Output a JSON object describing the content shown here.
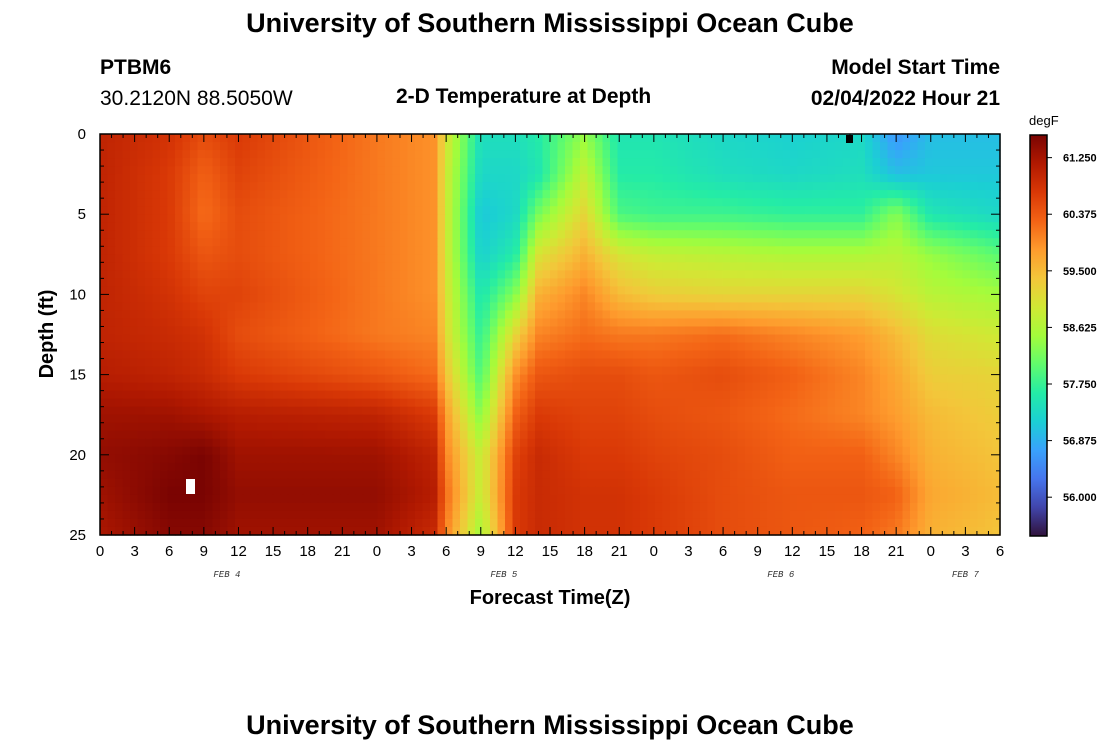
{
  "header": {
    "title_top": "University of Southern Mississippi Ocean Cube",
    "station": "PTBM6",
    "coords": "30.2120N  88.5050W",
    "chart_title": "2-D Temperature at Depth",
    "model_start_label": "Model Start Time",
    "model_start_value": "02/04/2022 Hour 21",
    "title_bottom": "University of Southern Mississippi Ocean Cube"
  },
  "chart_data": {
    "type": "heatmap",
    "title": "2-D Temperature at Depth",
    "xlabel": "Forecast Time(Z)",
    "ylabel": "Depth (ft)",
    "units": "degF",
    "x_hours": [
      0,
      78
    ],
    "y_depth_ft": [
      0,
      25
    ],
    "x_tick_labels": [
      "0",
      "3",
      "6",
      "9",
      "12",
      "15",
      "18",
      "21",
      "0",
      "3",
      "6",
      "9",
      "12",
      "15",
      "18",
      "21",
      "0",
      "3",
      "6",
      "9",
      "12",
      "15",
      "18",
      "21",
      "0",
      "3",
      "6"
    ],
    "y_tick_labels": [
      "0",
      "5",
      "10",
      "15",
      "20",
      "25"
    ],
    "day_labels": [
      {
        "label": "FEB 4",
        "hour": 11
      },
      {
        "label": "FEB 5",
        "hour": 35
      },
      {
        "label": "FEB 6",
        "hour": 59
      },
      {
        "label": "FEB 7",
        "hour": 75
      }
    ],
    "colorbar": {
      "min": 55.4,
      "max": 61.6,
      "tick_values": [
        61.25,
        60.375,
        59.5,
        58.625,
        57.75,
        56.875,
        56.0
      ],
      "tick_labels": [
        "61.250",
        "60.375",
        "59.500",
        "58.625",
        "57.750",
        "56.875",
        "56.000"
      ],
      "colors": [
        "#30123b",
        "#4145ab",
        "#4675ed",
        "#39a2fc",
        "#1bcfd4",
        "#24eca6",
        "#61fc6c",
        "#a4fc3b",
        "#d1e834",
        "#f3c63a",
        "#fe9b2d",
        "#f36315",
        "#d93806",
        "#b11901",
        "#7a0402"
      ]
    },
    "depth_rows_ft": [
      0,
      2.5,
      5,
      7.5,
      10,
      12.5,
      15,
      17.5,
      20,
      22.5,
      25
    ],
    "time_cols_hours": [
      0,
      6,
      9,
      12,
      24,
      29,
      30,
      33,
      36,
      38,
      42,
      45,
      48,
      54,
      60,
      66,
      69,
      72,
      78
    ],
    "temperature_grid": [
      [
        61.0,
        60.8,
        60.5,
        60.7,
        60.1,
        59.9,
        59.0,
        57.4,
        57.4,
        57.6,
        58.4,
        57.5,
        57.5,
        57.3,
        57.2,
        57.3,
        56.6,
        57.0,
        57.0
      ],
      [
        61.0,
        60.7,
        60.3,
        60.6,
        60.1,
        59.9,
        58.9,
        57.3,
        57.3,
        57.5,
        58.8,
        57.6,
        57.6,
        57.4,
        57.3,
        57.4,
        57.0,
        57.1,
        57.1
      ],
      [
        61.0,
        60.7,
        60.2,
        60.5,
        60.1,
        59.9,
        58.9,
        57.1,
        57.3,
        58.2,
        59.2,
        57.9,
        57.8,
        57.8,
        57.7,
        57.7,
        58.3,
        57.5,
        57.3
      ],
      [
        61.0,
        60.7,
        60.4,
        60.5,
        60.1,
        59.9,
        58.9,
        57.2,
        57.6,
        59.0,
        59.6,
        59.0,
        58.8,
        58.7,
        58.6,
        58.6,
        58.7,
        58.4,
        58.0
      ],
      [
        61.0,
        60.8,
        60.6,
        60.6,
        60.1,
        59.9,
        59.0,
        57.5,
        58.3,
        59.6,
        60.0,
        59.5,
        59.3,
        59.2,
        59.2,
        59.2,
        59.0,
        58.7,
        58.5
      ],
      [
        61.0,
        60.9,
        60.8,
        60.5,
        60.1,
        60.0,
        59.1,
        57.7,
        59.2,
        60.0,
        60.2,
        60.1,
        60.1,
        60.2,
        60.0,
        59.8,
        59.5,
        59.1,
        58.9
      ],
      [
        61.1,
        61.0,
        60.9,
        60.7,
        60.4,
        60.2,
        59.4,
        57.9,
        59.9,
        60.4,
        60.5,
        60.5,
        60.4,
        60.5,
        60.3,
        60.0,
        59.7,
        59.3,
        59.2
      ],
      [
        61.3,
        61.3,
        61.2,
        61.1,
        61.0,
        60.7,
        59.8,
        58.3,
        60.3,
        60.7,
        60.6,
        60.6,
        60.5,
        60.4,
        60.2,
        60.0,
        59.8,
        59.5,
        59.3
      ],
      [
        61.4,
        61.5,
        61.6,
        61.3,
        61.3,
        61.0,
        60.0,
        58.8,
        60.6,
        60.9,
        60.7,
        60.7,
        60.6,
        60.5,
        60.3,
        60.3,
        60.0,
        59.6,
        59.4
      ],
      [
        61.3,
        61.6,
        61.6,
        61.4,
        61.4,
        61.1,
        60.2,
        58.8,
        60.7,
        60.9,
        60.8,
        60.8,
        60.7,
        60.5,
        60.4,
        60.4,
        60.3,
        59.7,
        59.5
      ],
      [
        61.2,
        61.5,
        61.5,
        61.3,
        61.3,
        60.9,
        60.0,
        58.5,
        60.7,
        60.9,
        60.8,
        60.8,
        60.7,
        60.5,
        60.4,
        60.3,
        60.1,
        59.6,
        59.4
      ]
    ]
  }
}
